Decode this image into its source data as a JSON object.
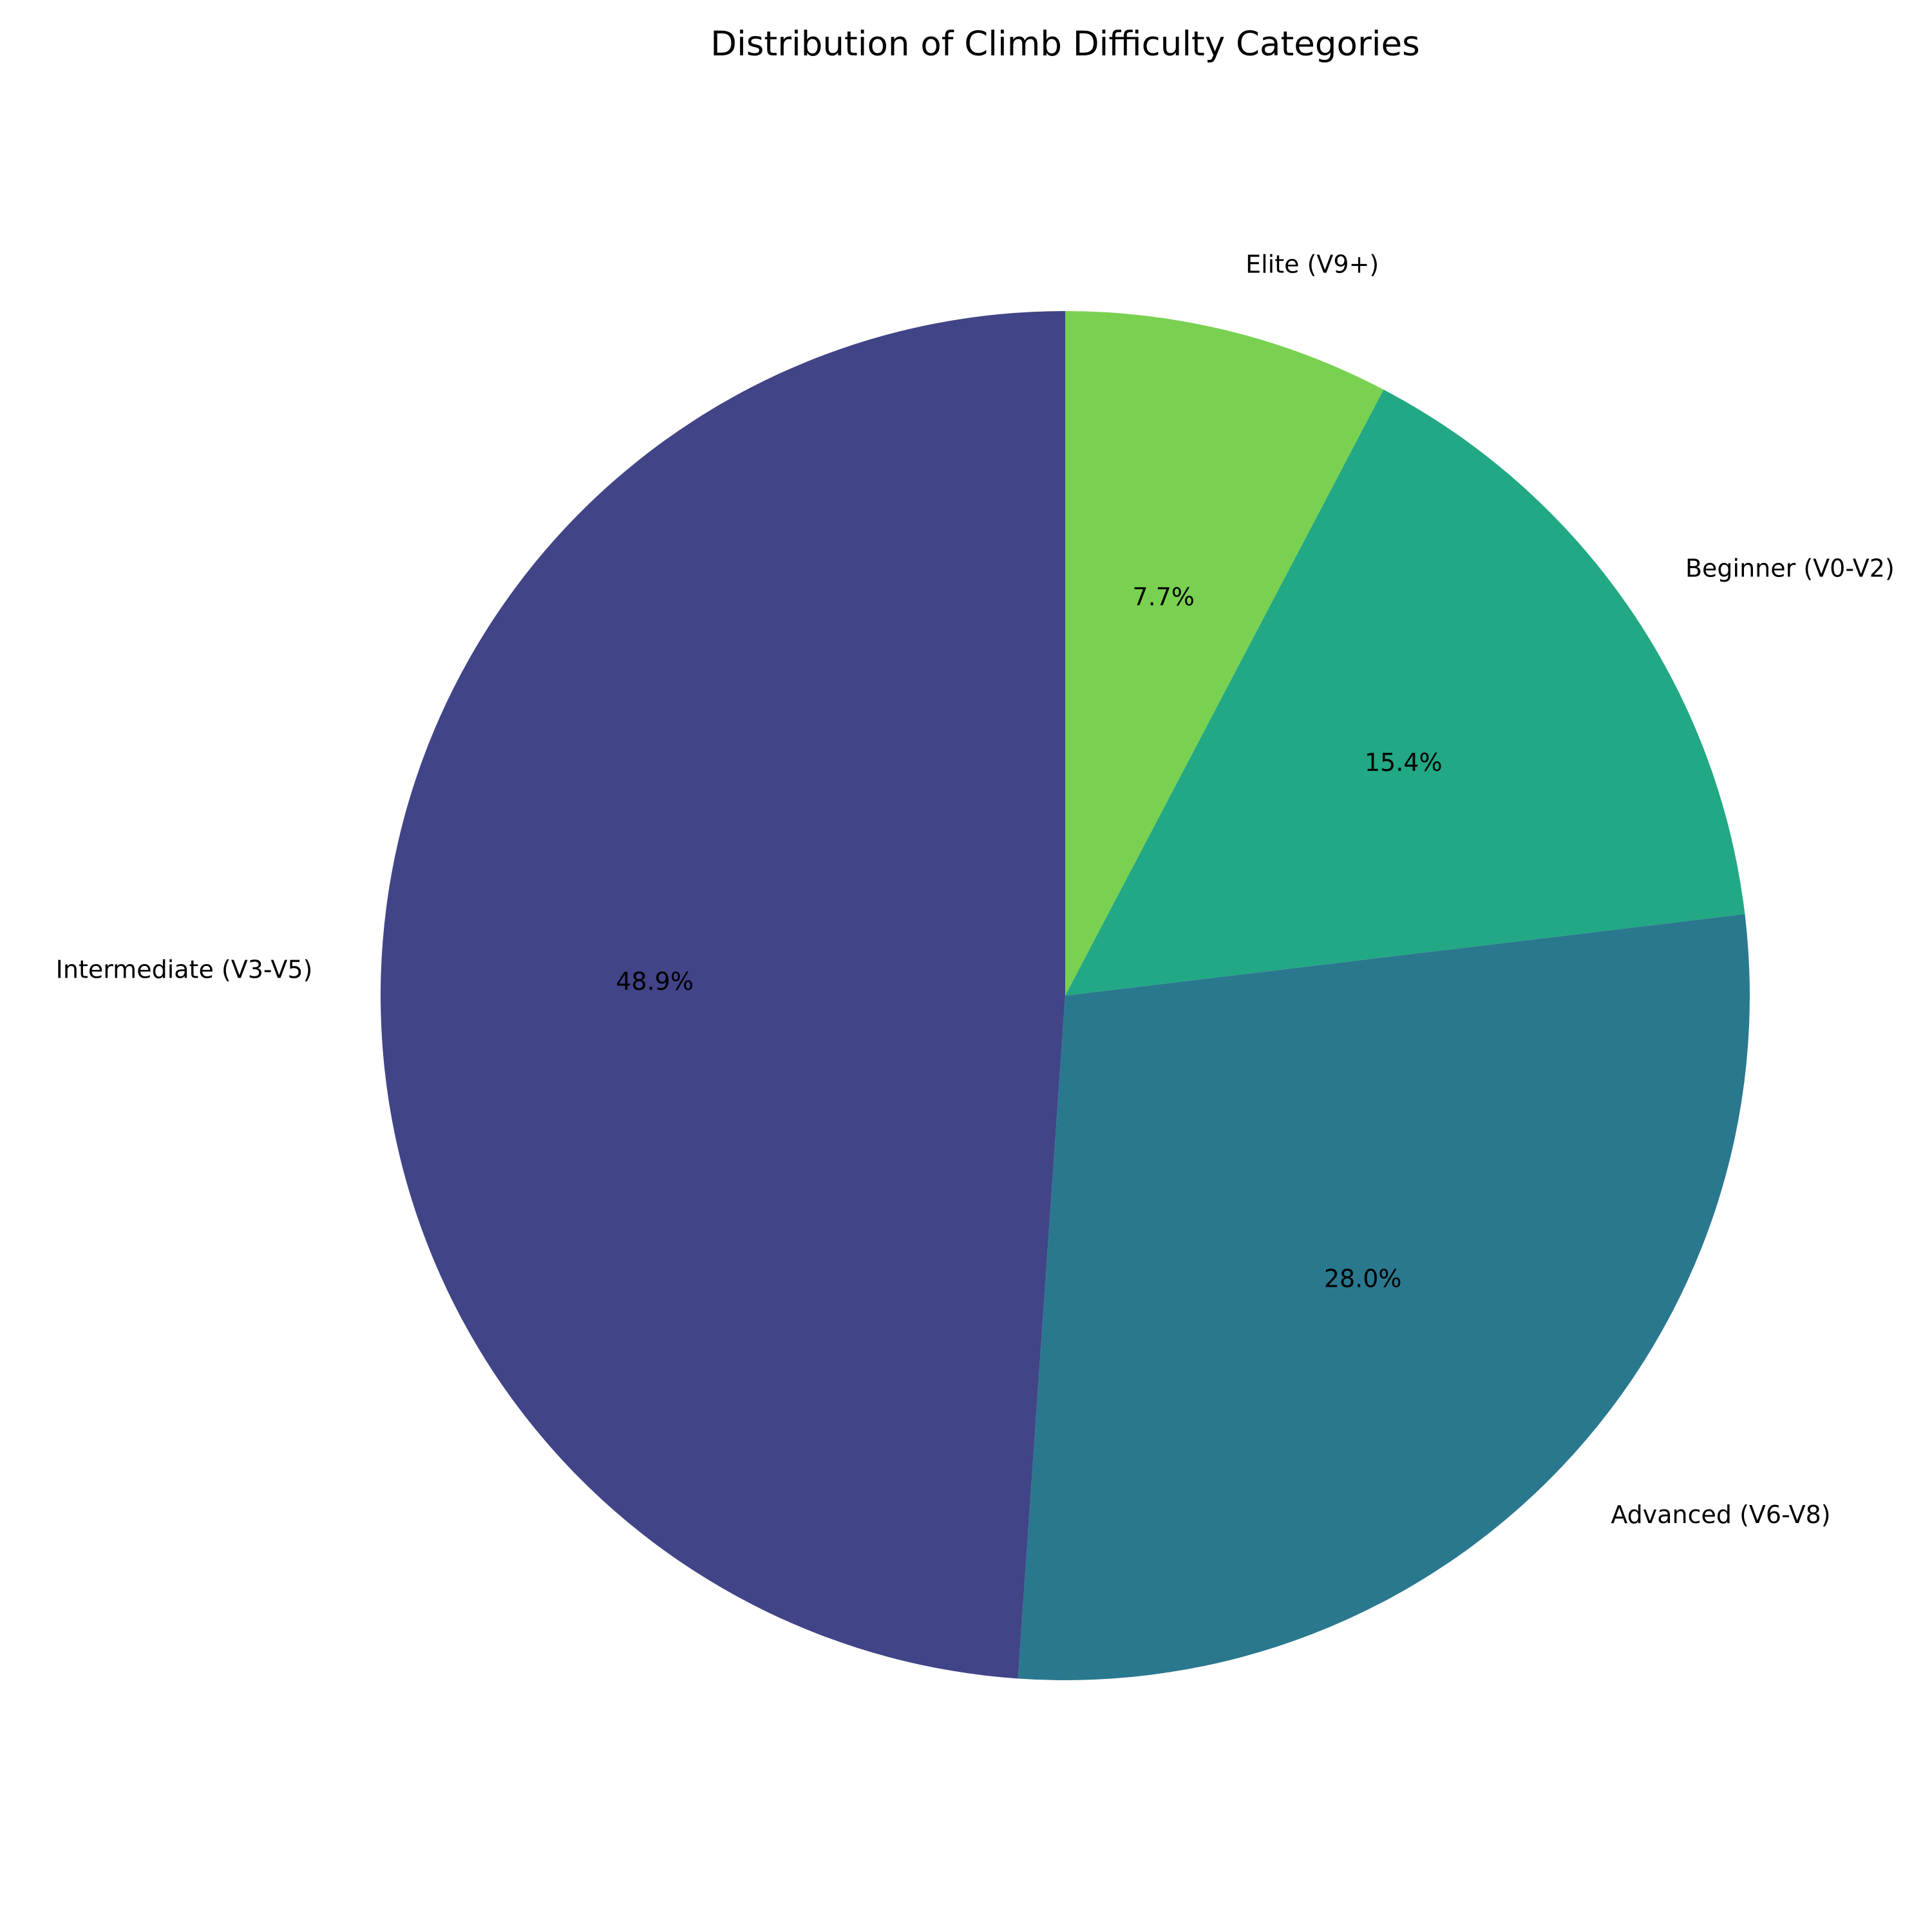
{
  "chart_data": {
    "type": "pie",
    "title": "Distribution of Climb Difficulty Categories",
    "start_angle_deg": 90,
    "direction": "clockwise",
    "slices": [
      {
        "label": "Elite (V9+)",
        "value": 7.7,
        "pct_label": "7.7%",
        "color": "#7ad151"
      },
      {
        "label": "Beginner (V0-V2)",
        "value": 15.4,
        "pct_label": "15.4%",
        "color": "#22a884"
      },
      {
        "label": "Advanced (V6-V8)",
        "value": 28.0,
        "pct_label": "28.0%",
        "color": "#2a788e"
      },
      {
        "label": "Intermediate (V3-V5)",
        "value": 48.9,
        "pct_label": "48.9%",
        "color": "#414487"
      }
    ]
  }
}
